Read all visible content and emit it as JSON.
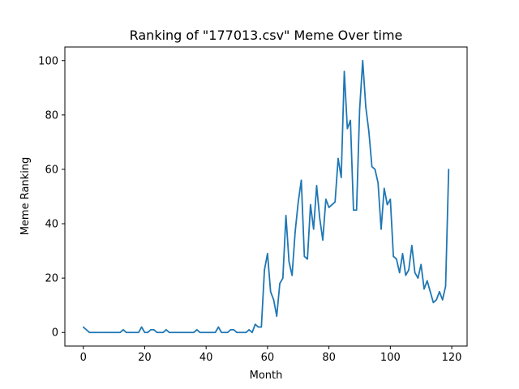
{
  "chart_data": {
    "type": "line",
    "title": "Ranking of \"177013.csv\" Meme Over time",
    "xlabel": "Month",
    "ylabel": "Meme Ranking",
    "xlim": [
      -6,
      125
    ],
    "ylim": [
      -5,
      105
    ],
    "xticks": [
      0,
      20,
      40,
      60,
      80,
      100,
      120
    ],
    "yticks": [
      0,
      20,
      40,
      60,
      80,
      100
    ],
    "grid": false,
    "line_color": "#1f77b4",
    "series": [
      {
        "x": [
          0,
          1,
          2,
          3,
          4,
          5,
          6,
          7,
          8,
          9,
          10,
          11,
          12,
          13,
          14,
          15,
          16,
          17,
          18,
          19,
          20,
          21,
          22,
          23,
          24,
          25,
          26,
          27,
          28,
          29,
          30,
          31,
          32,
          33,
          34,
          35,
          36,
          37,
          38,
          39,
          40,
          41,
          42,
          43,
          44,
          45,
          46,
          47,
          48,
          49,
          50,
          51,
          52,
          53,
          54,
          55,
          56,
          57,
          58,
          59,
          60,
          61,
          62,
          63,
          64,
          65,
          66,
          67,
          68,
          69,
          70,
          71,
          72,
          73,
          74,
          75,
          76,
          77,
          78,
          79,
          80,
          81,
          82,
          83,
          84,
          85,
          86,
          87,
          88,
          89,
          90,
          91,
          92,
          93,
          94,
          95,
          96,
          97,
          98,
          99,
          100,
          101,
          102,
          103,
          104,
          105,
          106,
          107,
          108,
          109,
          110,
          111,
          112,
          113,
          114,
          115,
          116,
          117,
          118,
          119
        ],
        "y": [
          2,
          1,
          0,
          0,
          0,
          0,
          0,
          0,
          0,
          0,
          0,
          0,
          0,
          1,
          0,
          0,
          0,
          0,
          0,
          2,
          0,
          0,
          1,
          1,
          0,
          0,
          0,
          1,
          0,
          0,
          0,
          0,
          0,
          0,
          0,
          0,
          0,
          1,
          0,
          0,
          0,
          0,
          0,
          0,
          2,
          0,
          0,
          0,
          1,
          1,
          0,
          0,
          0,
          0,
          1,
          0,
          3,
          2,
          2,
          23,
          29,
          15,
          12,
          6,
          18,
          20,
          43,
          26,
          21,
          37,
          48,
          56,
          28,
          27,
          47,
          38,
          54,
          42,
          34,
          49,
          46,
          47,
          48,
          64,
          57,
          96,
          75,
          78,
          45,
          45,
          82,
          100,
          83,
          74,
          61,
          60,
          55,
          38,
          53,
          47,
          49,
          28,
          27,
          22,
          29,
          21,
          23,
          32,
          22,
          20,
          25,
          16,
          19,
          15,
          11,
          12,
          15,
          12,
          17,
          60
        ]
      }
    ]
  }
}
